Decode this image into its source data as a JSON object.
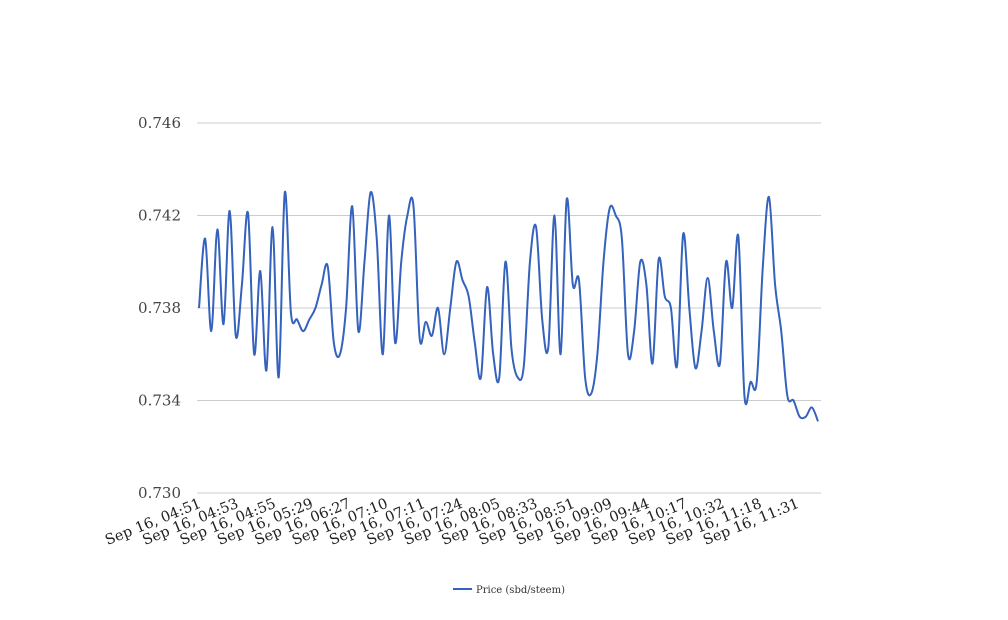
{
  "chart_data": {
    "type": "line",
    "grid": true,
    "legend_placement": "bottom-center",
    "ylim": [
      0.73,
      0.746
    ],
    "y_ticks": [
      "0.746",
      "0.742",
      "0.738",
      "0.734",
      "0.730"
    ],
    "y_tick_values": [
      0.746,
      0.742,
      0.738,
      0.734,
      0.73
    ],
    "x_tick_labels": [
      "Sep 16, 04:51",
      "Sep 16, 04:53",
      "Sep 16, 04:55",
      "Sep 16, 05:29",
      "Sep 16, 06:27",
      "Sep 16, 07:10",
      "Sep 16, 07:11",
      "Sep 16, 07:24",
      "Sep 16, 08:05",
      "Sep 16, 08:33",
      "Sep 16, 08:51",
      "Sep 16, 09:09",
      "Sep 16, 09:44",
      "Sep 16, 10:17",
      "Sep 16, 10:32",
      "Sep 16, 11:18",
      "Sep 16, 11:31"
    ],
    "series": [
      {
        "name": "Price (sbd/steem)",
        "color": "#3462bd",
        "values": [
          0.738,
          0.741,
          0.737,
          0.7414,
          0.7373,
          0.7422,
          0.7368,
          0.739,
          0.7421,
          0.736,
          0.7396,
          0.7353,
          0.7415,
          0.735,
          0.743,
          0.7378,
          0.7375,
          0.737,
          0.7375,
          0.738,
          0.739,
          0.7398,
          0.7365,
          0.736,
          0.738,
          0.7424,
          0.737,
          0.74,
          0.743,
          0.741,
          0.736,
          0.742,
          0.7365,
          0.74,
          0.742,
          0.7424,
          0.7367,
          0.7374,
          0.7368,
          0.738,
          0.736,
          0.738,
          0.74,
          0.7392,
          0.7385,
          0.7365,
          0.735,
          0.7389,
          0.736,
          0.735,
          0.74,
          0.7362,
          0.735,
          0.7355,
          0.74,
          0.7415,
          0.7375,
          0.7363,
          0.742,
          0.736,
          0.7427,
          0.739,
          0.7392,
          0.735,
          0.7343,
          0.736,
          0.74,
          0.7423,
          0.742,
          0.741,
          0.736,
          0.737,
          0.74,
          0.739,
          0.7356,
          0.7401,
          0.7385,
          0.738,
          0.7355,
          0.7412,
          0.738,
          0.7354,
          0.737,
          0.7393,
          0.737,
          0.7356,
          0.74,
          0.738,
          0.7411,
          0.7342,
          0.7348,
          0.7348,
          0.7398,
          0.7428,
          0.739,
          0.737,
          0.7342,
          0.734,
          0.7333,
          0.7333,
          0.7337,
          0.7331
        ]
      }
    ]
  }
}
